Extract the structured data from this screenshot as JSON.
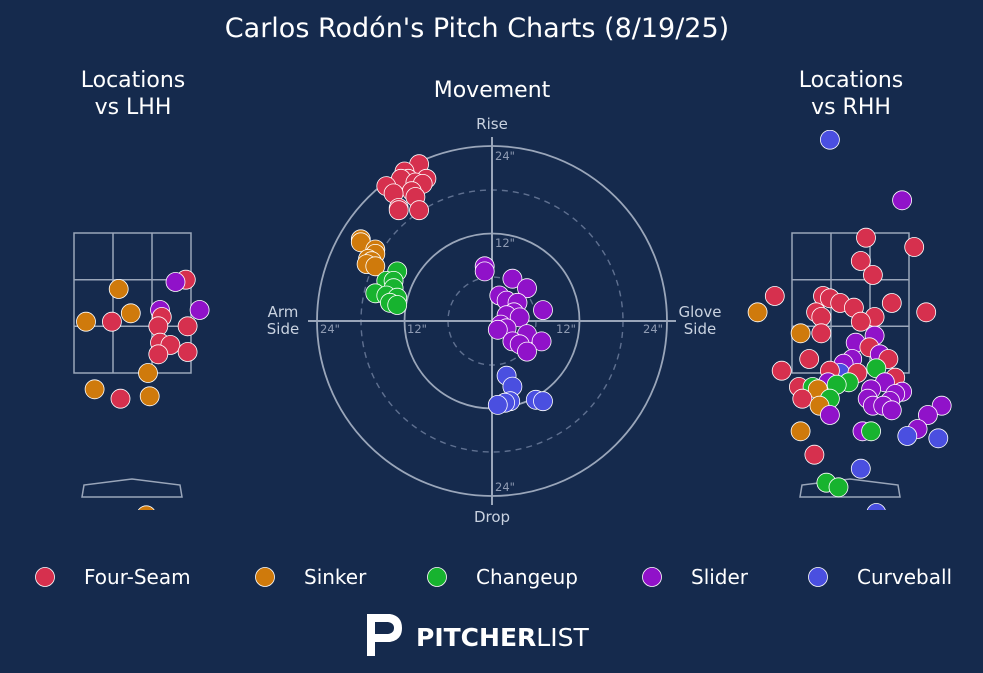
{
  "title": "Carlos Rodón's Pitch Charts (8/19/25)",
  "colors": {
    "background": "#152a4d",
    "lines": "#9aa6ba",
    "Four-Seam": "#d6304e",
    "Sinker": "#cf7a0c",
    "Changeup": "#17b32f",
    "Slider": "#9012c9",
    "Curveball": "#4a4fe0"
  },
  "chart_data": [
    {
      "type": "scatter",
      "title_line1": "Locations",
      "title_line2": "vs LHH",
      "points": [
        {
          "pitch": "Four-Seam",
          "x": 1.55,
          "y": 3.5
        },
        {
          "pitch": "Slider",
          "x": 1.25,
          "y": 3.45
        },
        {
          "pitch": "Sinker",
          "x": -0.4,
          "y": 3.3
        },
        {
          "pitch": "Slider",
          "x": 0.8,
          "y": 2.85
        },
        {
          "pitch": "Slider",
          "x": 1.95,
          "y": 2.85
        },
        {
          "pitch": "Sinker",
          "x": -0.05,
          "y": 2.78
        },
        {
          "pitch": "Four-Seam",
          "x": 0.85,
          "y": 2.7
        },
        {
          "pitch": "Sinker",
          "x": -1.35,
          "y": 2.6
        },
        {
          "pitch": "Four-Seam",
          "x": -0.6,
          "y": 2.6
        },
        {
          "pitch": "Four-Seam",
          "x": 0.75,
          "y": 2.5
        },
        {
          "pitch": "Four-Seam",
          "x": 1.6,
          "y": 2.5
        },
        {
          "pitch": "Four-Seam",
          "x": 0.8,
          "y": 2.15
        },
        {
          "pitch": "Four-Seam",
          "x": 1.1,
          "y": 2.1
        },
        {
          "pitch": "Four-Seam",
          "x": 1.6,
          "y": 1.95
        },
        {
          "pitch": "Four-Seam",
          "x": 0.75,
          "y": 1.9
        },
        {
          "pitch": "Sinker",
          "x": 0.45,
          "y": 1.5
        },
        {
          "pitch": "Sinker",
          "x": -1.1,
          "y": 1.15
        },
        {
          "pitch": "Four-Seam",
          "x": -0.35,
          "y": 0.95
        },
        {
          "pitch": "Sinker",
          "x": 0.5,
          "y": 1.0
        },
        {
          "pitch": "Sinker",
          "x": 0.4,
          "y": -1.55
        }
      ]
    },
    {
      "type": "scatter",
      "title": "Movement",
      "xlim": [
        -24,
        24
      ],
      "ylim": [
        -24,
        24
      ],
      "axis_labels": {
        "top": "Rise",
        "bottom": "Drop",
        "left_line1": "Arm",
        "left_line2": "Side",
        "right_line1": "Glove",
        "right_line2": "Side"
      },
      "tick_labels": {
        "top": "24\"",
        "top_inner": "12\"",
        "bottom": "24\"",
        "left": "24\"",
        "left_inner": "12\"",
        "right_inner": "12\"",
        "right": "24\""
      },
      "points": [
        {
          "pitch": "Four-Seam",
          "x": -10,
          "y": 21.5
        },
        {
          "pitch": "Four-Seam",
          "x": -12,
          "y": 20.5
        },
        {
          "pitch": "Four-Seam",
          "x": -11.5,
          "y": 19.5
        },
        {
          "pitch": "Four-Seam",
          "x": -12.5,
          "y": 19.5
        },
        {
          "pitch": "Four-Seam",
          "x": -9,
          "y": 19.5
        },
        {
          "pitch": "Four-Seam",
          "x": -10.5,
          "y": 19
        },
        {
          "pitch": "Four-Seam",
          "x": -9.5,
          "y": 18.8
        },
        {
          "pitch": "Four-Seam",
          "x": -14.5,
          "y": 18.5
        },
        {
          "pitch": "Four-Seam",
          "x": -11,
          "y": 17.8
        },
        {
          "pitch": "Four-Seam",
          "x": -13.5,
          "y": 17.5
        },
        {
          "pitch": "Four-Seam",
          "x": -10.5,
          "y": 17
        },
        {
          "pitch": "Four-Seam",
          "x": -12.8,
          "y": 15.5
        },
        {
          "pitch": "Four-Seam",
          "x": -12.8,
          "y": 15.2
        },
        {
          "pitch": "Four-Seam",
          "x": -10,
          "y": 15.2
        },
        {
          "pitch": "Sinker",
          "x": -18,
          "y": 11.2
        },
        {
          "pitch": "Sinker",
          "x": -18,
          "y": 10.8
        },
        {
          "pitch": "Sinker",
          "x": -16,
          "y": 9.8
        },
        {
          "pitch": "Sinker",
          "x": -16,
          "y": 9.2
        },
        {
          "pitch": "Sinker",
          "x": -17,
          "y": 8.5
        },
        {
          "pitch": "Sinker",
          "x": -16.5,
          "y": 8.2
        },
        {
          "pitch": "Sinker",
          "x": -17.2,
          "y": 7.8
        },
        {
          "pitch": "Sinker",
          "x": -16,
          "y": 7.5
        },
        {
          "pitch": "Changeup",
          "x": -13,
          "y": 6.8
        },
        {
          "pitch": "Changeup",
          "x": -14.5,
          "y": 5.5
        },
        {
          "pitch": "Changeup",
          "x": -13.5,
          "y": 5.5
        },
        {
          "pitch": "Changeup",
          "x": -13.5,
          "y": 4.5
        },
        {
          "pitch": "Changeup",
          "x": -16,
          "y": 3.8
        },
        {
          "pitch": "Changeup",
          "x": -14.5,
          "y": 3.5
        },
        {
          "pitch": "Changeup",
          "x": -13,
          "y": 3.2
        },
        {
          "pitch": "Changeup",
          "x": -14,
          "y": 2.5
        },
        {
          "pitch": "Changeup",
          "x": -13,
          "y": 2.2
        },
        {
          "pitch": "Slider",
          "x": -1,
          "y": 7.5
        },
        {
          "pitch": "Slider",
          "x": -1,
          "y": 6.8
        },
        {
          "pitch": "Slider",
          "x": 2.8,
          "y": 5.8
        },
        {
          "pitch": "Slider",
          "x": 4.8,
          "y": 4.5
        },
        {
          "pitch": "Slider",
          "x": 1,
          "y": 3.5
        },
        {
          "pitch": "Slider",
          "x": 2,
          "y": 2.8
        },
        {
          "pitch": "Slider",
          "x": 3.5,
          "y": 2.5
        },
        {
          "pitch": "Slider",
          "x": 7,
          "y": 1.5
        },
        {
          "pitch": "Slider",
          "x": 3,
          "y": 1.2
        },
        {
          "pitch": "Slider",
          "x": 2,
          "y": 0.8
        },
        {
          "pitch": "Slider",
          "x": 3.8,
          "y": 0.5
        },
        {
          "pitch": "Slider",
          "x": 1.2,
          "y": -0.5
        },
        {
          "pitch": "Slider",
          "x": 2,
          "y": -1
        },
        {
          "pitch": "Slider",
          "x": 0.8,
          "y": -1.2
        },
        {
          "pitch": "Slider",
          "x": 4.8,
          "y": -1.8
        },
        {
          "pitch": "Slider",
          "x": 2.8,
          "y": -2.8
        },
        {
          "pitch": "Slider",
          "x": 6.8,
          "y": -2.8
        },
        {
          "pitch": "Slider",
          "x": 3.8,
          "y": -3.2
        },
        {
          "pitch": "Slider",
          "x": 4.8,
          "y": -4.2
        },
        {
          "pitch": "Curveball",
          "x": 2,
          "y": -7.5
        },
        {
          "pitch": "Curveball",
          "x": 2.8,
          "y": -9
        },
        {
          "pitch": "Curveball",
          "x": 6,
          "y": -10.8
        },
        {
          "pitch": "Curveball",
          "x": 2.5,
          "y": -11
        },
        {
          "pitch": "Curveball",
          "x": 7,
          "y": -11
        },
        {
          "pitch": "Curveball",
          "x": 1.8,
          "y": -11.2
        },
        {
          "pitch": "Curveball",
          "x": 0.8,
          "y": -11.5
        }
      ]
    },
    {
      "type": "scatter",
      "title_line1": "Locations",
      "title_line2": "vs RHH",
      "points": [
        {
          "pitch": "Curveball",
          "x": -0.6,
          "y": 6.5
        },
        {
          "pitch": "Slider",
          "x": 1.5,
          "y": 5.2
        },
        {
          "pitch": "Four-Seam",
          "x": 0.45,
          "y": 4.4
        },
        {
          "pitch": "Four-Seam",
          "x": 1.85,
          "y": 4.2
        },
        {
          "pitch": "Four-Seam",
          "x": 0.3,
          "y": 3.9
        },
        {
          "pitch": "Four-Seam",
          "x": 0.65,
          "y": 3.6
        },
        {
          "pitch": "Four-Seam",
          "x": -2.2,
          "y": 3.15
        },
        {
          "pitch": "Four-Seam",
          "x": -0.8,
          "y": 3.15
        },
        {
          "pitch": "Four-Seam",
          "x": -0.6,
          "y": 3.1
        },
        {
          "pitch": "Four-Seam",
          "x": -0.3,
          "y": 3.0
        },
        {
          "pitch": "Four-Seam",
          "x": 1.2,
          "y": 3.0
        },
        {
          "pitch": "Four-Seam",
          "x": 0.1,
          "y": 2.9
        },
        {
          "pitch": "Four-Seam",
          "x": 2.2,
          "y": 2.8
        },
        {
          "pitch": "Sinker",
          "x": -2.7,
          "y": 2.8
        },
        {
          "pitch": "Four-Seam",
          "x": -1.0,
          "y": 2.8
        },
        {
          "pitch": "Four-Seam",
          "x": -0.85,
          "y": 2.7
        },
        {
          "pitch": "Four-Seam",
          "x": 0.7,
          "y": 2.7
        },
        {
          "pitch": "Four-Seam",
          "x": 0.3,
          "y": 2.6
        },
        {
          "pitch": "Slider",
          "x": 0.7,
          "y": 2.3
        },
        {
          "pitch": "Sinker",
          "x": -1.45,
          "y": 2.35
        },
        {
          "pitch": "Four-Seam",
          "x": -0.85,
          "y": 2.35
        },
        {
          "pitch": "Slider",
          "x": 0.15,
          "y": 2.15
        },
        {
          "pitch": "Four-Seam",
          "x": 0.55,
          "y": 2.05
        },
        {
          "pitch": "Slider",
          "x": 0.85,
          "y": 1.9
        },
        {
          "pitch": "Four-Seam",
          "x": -1.2,
          "y": 1.8
        },
        {
          "pitch": "Slider",
          "x": 0.05,
          "y": 1.8
        },
        {
          "pitch": "Four-Seam",
          "x": 1.1,
          "y": 1.8
        },
        {
          "pitch": "Slider",
          "x": -0.2,
          "y": 1.7
        },
        {
          "pitch": "Changeup",
          "x": 0.75,
          "y": 1.6
        },
        {
          "pitch": "Curveball",
          "x": -0.3,
          "y": 1.5
        },
        {
          "pitch": "Four-Seam",
          "x": -2.0,
          "y": 1.55
        },
        {
          "pitch": "Four-Seam",
          "x": -0.6,
          "y": 1.55
        },
        {
          "pitch": "Four-Seam",
          "x": 0.2,
          "y": 1.5
        },
        {
          "pitch": "Four-Seam",
          "x": 1.3,
          "y": 1.4
        },
        {
          "pitch": "Slider",
          "x": -0.65,
          "y": 1.3
        },
        {
          "pitch": "Changeup",
          "x": -0.05,
          "y": 1.3
        },
        {
          "pitch": "Changeup",
          "x": -0.4,
          "y": 1.25
        },
        {
          "pitch": "Slider",
          "x": 1.0,
          "y": 1.3
        },
        {
          "pitch": "Four-Seam",
          "x": -1.5,
          "y": 1.2
        },
        {
          "pitch": "Changeup",
          "x": -1.1,
          "y": 1.2
        },
        {
          "pitch": "Sinker",
          "x": -0.95,
          "y": 1.15
        },
        {
          "pitch": "Slider",
          "x": 0.6,
          "y": 1.15
        },
        {
          "pitch": "Slider",
          "x": 1.5,
          "y": 1.1
        },
        {
          "pitch": "Slider",
          "x": 1.3,
          "y": 1.05
        },
        {
          "pitch": "Four-Seam",
          "x": -1.4,
          "y": 0.95
        },
        {
          "pitch": "Changeup",
          "x": -0.6,
          "y": 0.95
        },
        {
          "pitch": "Slider",
          "x": 0.5,
          "y": 0.95
        },
        {
          "pitch": "Slider",
          "x": 1.15,
          "y": 0.9
        },
        {
          "pitch": "Slider",
          "x": 0.65,
          "y": 0.8
        },
        {
          "pitch": "Sinker",
          "x": -0.9,
          "y": 0.8
        },
        {
          "pitch": "Slider",
          "x": 0.95,
          "y": 0.8
        },
        {
          "pitch": "Slider",
          "x": 2.65,
          "y": 0.8
        },
        {
          "pitch": "Slider",
          "x": 1.2,
          "y": 0.7
        },
        {
          "pitch": "Slider",
          "x": -0.6,
          "y": 0.6
        },
        {
          "pitch": "Slider",
          "x": 2.25,
          "y": 0.6
        },
        {
          "pitch": "Sinker",
          "x": -1.45,
          "y": 0.25
        },
        {
          "pitch": "Slider",
          "x": 0.35,
          "y": 0.25
        },
        {
          "pitch": "Changeup",
          "x": 0.6,
          "y": 0.25
        },
        {
          "pitch": "Slider",
          "x": 1.95,
          "y": 0.3
        },
        {
          "pitch": "Curveball",
          "x": 1.65,
          "y": 0.15
        },
        {
          "pitch": "Curveball",
          "x": 2.55,
          "y": 0.1
        },
        {
          "pitch": "Four-Seam",
          "x": -1.05,
          "y": -0.25
        },
        {
          "pitch": "Curveball",
          "x": 0.3,
          "y": -0.55
        },
        {
          "pitch": "Changeup",
          "x": -0.7,
          "y": -0.85
        },
        {
          "pitch": "Changeup",
          "x": -0.35,
          "y": -0.95
        },
        {
          "pitch": "Curveball",
          "x": 0.75,
          "y": -1.5
        }
      ]
    }
  ],
  "legend": [
    {
      "pitch": "Four-Seam",
      "label": "Four-Seam"
    },
    {
      "pitch": "Sinker",
      "label": "Sinker"
    },
    {
      "pitch": "Changeup",
      "label": "Changeup"
    },
    {
      "pitch": "Slider",
      "label": "Slider"
    },
    {
      "pitch": "Curveball",
      "label": "Curveball"
    }
  ],
  "logo": {
    "icon": "pitcherlist-p-icon",
    "bold": "PITCHER",
    "light": "LIST"
  }
}
